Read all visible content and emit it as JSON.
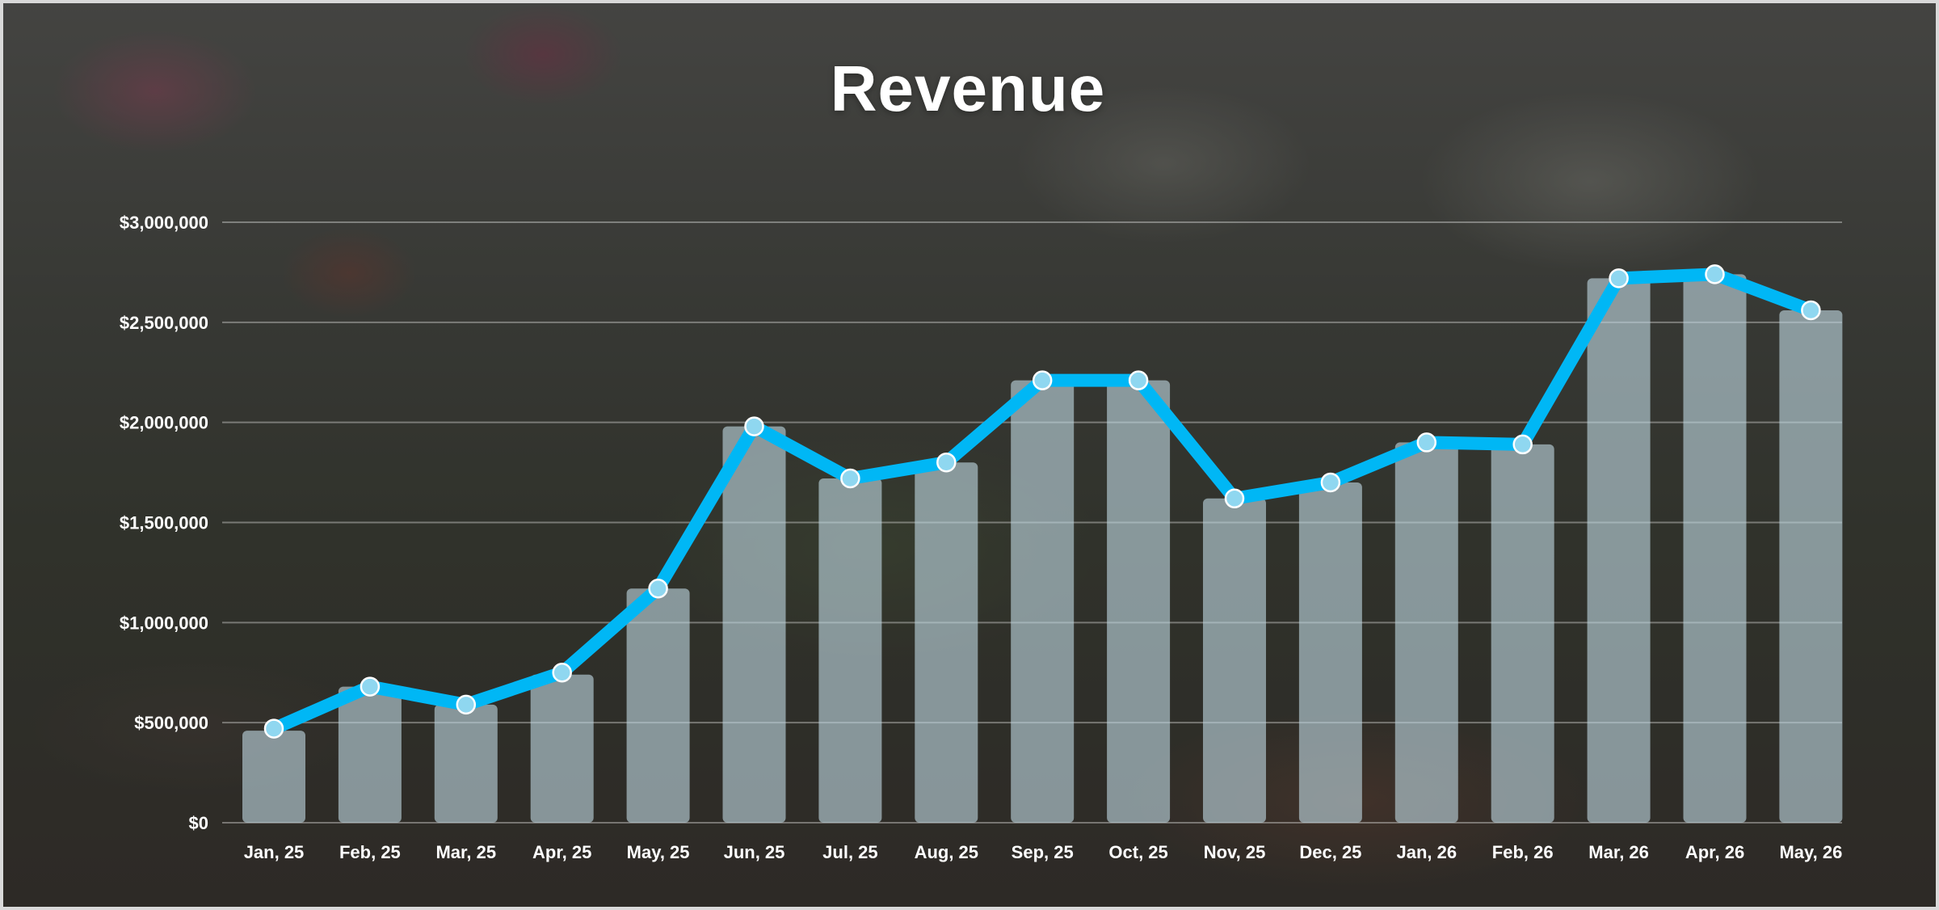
{
  "chart_data": {
    "type": "bar",
    "title": "Revenue",
    "xlabel": "",
    "ylabel": "",
    "ylim": [
      0,
      3000000
    ],
    "yticks": [
      0,
      500000,
      1000000,
      1500000,
      2000000,
      2500000,
      3000000
    ],
    "ytick_labels": [
      "$0",
      "$500,000",
      "$1,000,000",
      "$1,500,000",
      "$2,000,000",
      "$2,500,000",
      "$3,000,000"
    ],
    "categories": [
      "Jan, 25",
      "Feb, 25",
      "Mar, 25",
      "Apr, 25",
      "May, 25",
      "Jun, 25",
      "Jul, 25",
      "Aug, 25",
      "Sep, 25",
      "Oct, 25",
      "Nov, 25",
      "Dec, 25",
      "Jan, 26",
      "Feb, 26",
      "Mar, 26",
      "Apr, 26",
      "May, 26"
    ],
    "series": [
      {
        "type": "bar",
        "values": [
          460000,
          680000,
          590000,
          740000,
          1170000,
          1980000,
          1720000,
          1800000,
          2210000,
          2210000,
          1620000,
          1700000,
          1900000,
          1890000,
          2720000,
          2740000,
          2560000
        ]
      },
      {
        "type": "line",
        "values": [
          470000,
          680000,
          590000,
          750000,
          1170000,
          1980000,
          1720000,
          1800000,
          2210000,
          2210000,
          1620000,
          1700000,
          1900000,
          1890000,
          2720000,
          2740000,
          2560000
        ]
      }
    ],
    "grid": true,
    "legend": "none"
  },
  "colors": {
    "line": "#00b7f5",
    "bar": "#bed7e1",
    "text": "#ffffff"
  }
}
